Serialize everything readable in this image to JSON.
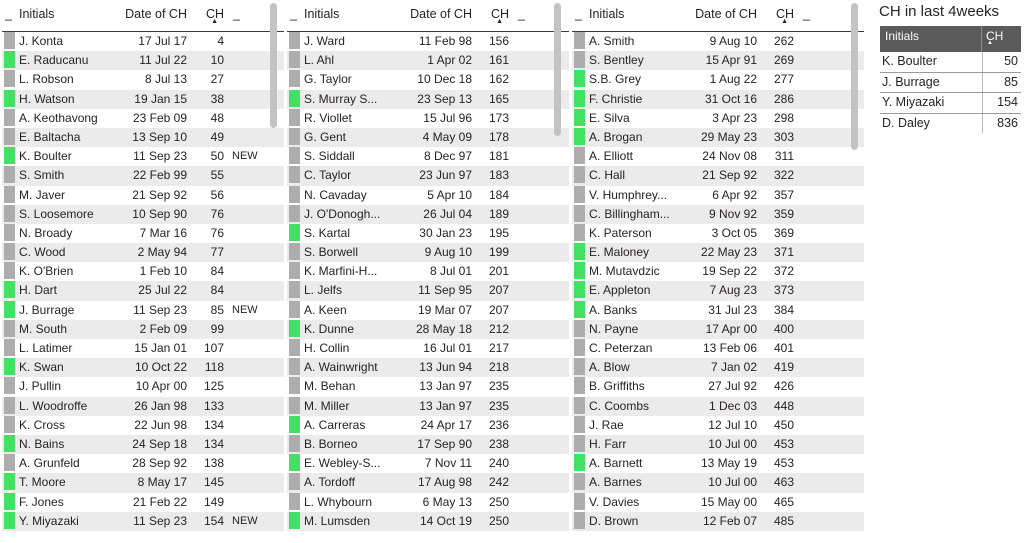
{
  "colors": {
    "flag_green": "#41e263",
    "flag_gray": "#adadad",
    "panel_header_bg": "#5a5a5a"
  },
  "tables": [
    {
      "pad_left": "_",
      "pad_right": "_",
      "columns": [
        "Initials",
        "Date of CH",
        "CH"
      ],
      "sort_icon": "▲",
      "rows": [
        {
          "flag": "gray",
          "initials": "J. Konta",
          "date": "17 Jul 17",
          "ch": "4",
          "tag": ""
        },
        {
          "flag": "green",
          "initials": "E. Raducanu",
          "date": "11 Jul 22",
          "ch": "10",
          "tag": ""
        },
        {
          "flag": "gray",
          "initials": "L. Robson",
          "date": "8 Jul 13",
          "ch": "27",
          "tag": ""
        },
        {
          "flag": "green",
          "initials": "H. Watson",
          "date": "19 Jan 15",
          "ch": "38",
          "tag": ""
        },
        {
          "flag": "gray",
          "initials": "A. Keothavong",
          "date": "23 Feb 09",
          "ch": "48",
          "tag": ""
        },
        {
          "flag": "gray",
          "initials": "E. Baltacha",
          "date": "13 Sep 10",
          "ch": "49",
          "tag": ""
        },
        {
          "flag": "green",
          "initials": "K. Boulter",
          "date": "11 Sep 23",
          "ch": "50",
          "tag": "NEW"
        },
        {
          "flag": "gray",
          "initials": "S. Smith",
          "date": "22 Feb 99",
          "ch": "55",
          "tag": ""
        },
        {
          "flag": "gray",
          "initials": "M. Javer",
          "date": "21 Sep 92",
          "ch": "56",
          "tag": ""
        },
        {
          "flag": "gray",
          "initials": "S. Loosemore",
          "date": "10 Sep 90",
          "ch": "76",
          "tag": ""
        },
        {
          "flag": "gray",
          "initials": "N. Broady",
          "date": "7 Mar 16",
          "ch": "76",
          "tag": ""
        },
        {
          "flag": "gray",
          "initials": "C. Wood",
          "date": "2 May 94",
          "ch": "77",
          "tag": ""
        },
        {
          "flag": "gray",
          "initials": "K. O'Brien",
          "date": "1 Feb 10",
          "ch": "84",
          "tag": ""
        },
        {
          "flag": "green",
          "initials": "H. Dart",
          "date": "25 Jul 22",
          "ch": "84",
          "tag": ""
        },
        {
          "flag": "green",
          "initials": "J. Burrage",
          "date": "11 Sep 23",
          "ch": "85",
          "tag": "NEW"
        },
        {
          "flag": "gray",
          "initials": "M. South",
          "date": "2 Feb 09",
          "ch": "99",
          "tag": ""
        },
        {
          "flag": "gray",
          "initials": "L. Latimer",
          "date": "15 Jan 01",
          "ch": "107",
          "tag": ""
        },
        {
          "flag": "green",
          "initials": "K. Swan",
          "date": "10 Oct 22",
          "ch": "118",
          "tag": ""
        },
        {
          "flag": "gray",
          "initials": "J. Pullin",
          "date": "10 Apr 00",
          "ch": "125",
          "tag": ""
        },
        {
          "flag": "gray",
          "initials": "L. Woodroffe",
          "date": "26 Jan 98",
          "ch": "133",
          "tag": ""
        },
        {
          "flag": "gray",
          "initials": "K. Cross",
          "date": "22 Jun 98",
          "ch": "134",
          "tag": ""
        },
        {
          "flag": "green",
          "initials": "N. Bains",
          "date": "24 Sep 18",
          "ch": "134",
          "tag": ""
        },
        {
          "flag": "gray",
          "initials": "A. Grunfeld",
          "date": "28 Sep 92",
          "ch": "138",
          "tag": ""
        },
        {
          "flag": "green",
          "initials": "T. Moore",
          "date": "8 May 17",
          "ch": "145",
          "tag": ""
        },
        {
          "flag": "green",
          "initials": "F. Jones",
          "date": "21 Feb 22",
          "ch": "149",
          "tag": ""
        },
        {
          "flag": "green",
          "initials": "Y. Miyazaki",
          "date": "11 Sep 23",
          "ch": "154",
          "tag": "NEW"
        }
      ]
    },
    {
      "pad_left": "_",
      "pad_right": "_",
      "columns": [
        "Initials",
        "Date of CH",
        "CH"
      ],
      "sort_icon": "▲",
      "rows": [
        {
          "flag": "gray",
          "initials": "J. Ward",
          "date": "11 Feb 98",
          "ch": "156",
          "tag": ""
        },
        {
          "flag": "gray",
          "initials": "L. Ahl",
          "date": "1 Apr 02",
          "ch": "161",
          "tag": ""
        },
        {
          "flag": "gray",
          "initials": "G. Taylor",
          "date": "10 Dec 18",
          "ch": "162",
          "tag": ""
        },
        {
          "flag": "green",
          "initials": "S. Murray S...",
          "date": "23 Sep 13",
          "ch": "165",
          "tag": ""
        },
        {
          "flag": "gray",
          "initials": "R. Viollet",
          "date": "15 Jul 96",
          "ch": "173",
          "tag": ""
        },
        {
          "flag": "gray",
          "initials": "G. Gent",
          "date": "4 May 09",
          "ch": "178",
          "tag": ""
        },
        {
          "flag": "gray",
          "initials": "S. Siddall",
          "date": "8 Dec 97",
          "ch": "181",
          "tag": ""
        },
        {
          "flag": "gray",
          "initials": "C. Taylor",
          "date": "23 Jun 97",
          "ch": "183",
          "tag": ""
        },
        {
          "flag": "gray",
          "initials": "N. Cavaday",
          "date": "5 Apr 10",
          "ch": "184",
          "tag": ""
        },
        {
          "flag": "gray",
          "initials": "J. O'Donogh...",
          "date": "26 Jul 04",
          "ch": "189",
          "tag": ""
        },
        {
          "flag": "green",
          "initials": "S. Kartal",
          "date": "30 Jan 23",
          "ch": "195",
          "tag": ""
        },
        {
          "flag": "gray",
          "initials": "S. Borwell",
          "date": "9 Aug 10",
          "ch": "199",
          "tag": ""
        },
        {
          "flag": "gray",
          "initials": "K. Marfini-H...",
          "date": "8 Jul 01",
          "ch": "201",
          "tag": ""
        },
        {
          "flag": "gray",
          "initials": "L. Jelfs",
          "date": "11 Sep 95",
          "ch": "207",
          "tag": ""
        },
        {
          "flag": "gray",
          "initials": "A. Keen",
          "date": "19 Mar 07",
          "ch": "207",
          "tag": ""
        },
        {
          "flag": "green",
          "initials": "K. Dunne",
          "date": "28 May 18",
          "ch": "212",
          "tag": ""
        },
        {
          "flag": "gray",
          "initials": "H. Collin",
          "date": "16 Jul 01",
          "ch": "217",
          "tag": ""
        },
        {
          "flag": "gray",
          "initials": "A. Wainwright",
          "date": "13 Jun 94",
          "ch": "218",
          "tag": ""
        },
        {
          "flag": "gray",
          "initials": "M. Behan",
          "date": "13 Jan 97",
          "ch": "235",
          "tag": ""
        },
        {
          "flag": "gray",
          "initials": "M. Miller",
          "date": "13 Jan 97",
          "ch": "235",
          "tag": ""
        },
        {
          "flag": "green",
          "initials": "A. Carreras",
          "date": "24 Apr 17",
          "ch": "236",
          "tag": ""
        },
        {
          "flag": "gray",
          "initials": "B. Borneo",
          "date": "17 Sep 90",
          "ch": "238",
          "tag": ""
        },
        {
          "flag": "green",
          "initials": "E. Webley-S...",
          "date": "7 Nov 11",
          "ch": "240",
          "tag": ""
        },
        {
          "flag": "gray",
          "initials": "A. Tordoff",
          "date": "17 Aug 98",
          "ch": "242",
          "tag": ""
        },
        {
          "flag": "gray",
          "initials": "L. Whybourn",
          "date": "6 May 13",
          "ch": "250",
          "tag": ""
        },
        {
          "flag": "green",
          "initials": "M. Lumsden",
          "date": "14 Oct 19",
          "ch": "250",
          "tag": ""
        }
      ]
    },
    {
      "pad_left": "_",
      "pad_right": "_",
      "columns": [
        "Initials",
        "Date of CH",
        "CH"
      ],
      "sort_icon": "▲",
      "rows": [
        {
          "flag": "gray",
          "initials": "A. Smith",
          "date": "9 Aug 10",
          "ch": "262",
          "tag": ""
        },
        {
          "flag": "gray",
          "initials": "S. Bentley",
          "date": "15 Apr 91",
          "ch": "269",
          "tag": ""
        },
        {
          "flag": "green",
          "initials": "S.B. Grey",
          "date": "1 Aug 22",
          "ch": "277",
          "tag": ""
        },
        {
          "flag": "green",
          "initials": "F. Christie",
          "date": "31 Oct 16",
          "ch": "286",
          "tag": ""
        },
        {
          "flag": "green",
          "initials": "E. Silva",
          "date": "3 Apr 23",
          "ch": "298",
          "tag": ""
        },
        {
          "flag": "green",
          "initials": "A. Brogan",
          "date": "29 May 23",
          "ch": "303",
          "tag": ""
        },
        {
          "flag": "gray",
          "initials": "A. Elliott",
          "date": "24 Nov 08",
          "ch": "311",
          "tag": ""
        },
        {
          "flag": "gray",
          "initials": "C. Hall",
          "date": "21 Sep 92",
          "ch": "322",
          "tag": ""
        },
        {
          "flag": "gray",
          "initials": "V. Humphrey...",
          "date": "6 Apr 92",
          "ch": "357",
          "tag": ""
        },
        {
          "flag": "gray",
          "initials": "C. Billingham...",
          "date": "9 Nov 92",
          "ch": "359",
          "tag": ""
        },
        {
          "flag": "gray",
          "initials": "K. Paterson",
          "date": "3 Oct 05",
          "ch": "369",
          "tag": ""
        },
        {
          "flag": "green",
          "initials": "E. Maloney",
          "date": "22 May 23",
          "ch": "371",
          "tag": ""
        },
        {
          "flag": "green",
          "initials": "M. Mutavdzic",
          "date": "19 Sep 22",
          "ch": "372",
          "tag": ""
        },
        {
          "flag": "green",
          "initials": "E. Appleton",
          "date": "7 Aug 23",
          "ch": "373",
          "tag": ""
        },
        {
          "flag": "green",
          "initials": "A. Banks",
          "date": "31 Jul 23",
          "ch": "384",
          "tag": ""
        },
        {
          "flag": "gray",
          "initials": "N. Payne",
          "date": "17 Apr 00",
          "ch": "400",
          "tag": ""
        },
        {
          "flag": "gray",
          "initials": "C. Peterzan",
          "date": "13 Feb 06",
          "ch": "401",
          "tag": ""
        },
        {
          "flag": "gray",
          "initials": "A. Blow",
          "date": "7 Jan 02",
          "ch": "419",
          "tag": ""
        },
        {
          "flag": "gray",
          "initials": "B. Griffiths",
          "date": "27 Jul 92",
          "ch": "426",
          "tag": ""
        },
        {
          "flag": "gray",
          "initials": "C. Coombs",
          "date": "1 Dec 03",
          "ch": "448",
          "tag": ""
        },
        {
          "flag": "gray",
          "initials": "J. Rae",
          "date": "12 Jul 10",
          "ch": "450",
          "tag": ""
        },
        {
          "flag": "gray",
          "initials": "H. Farr",
          "date": "10 Jul 00",
          "ch": "453",
          "tag": ""
        },
        {
          "flag": "green",
          "initials": "A. Barnett",
          "date": "13 May 19",
          "ch": "453",
          "tag": ""
        },
        {
          "flag": "gray",
          "initials": "A. Barnes",
          "date": "10 Jul 00",
          "ch": "463",
          "tag": ""
        },
        {
          "flag": "gray",
          "initials": "V. Davies",
          "date": "15 May 00",
          "ch": "465",
          "tag": ""
        },
        {
          "flag": "gray",
          "initials": "D. Brown",
          "date": "12 Feb 07",
          "ch": "485",
          "tag": ""
        }
      ]
    }
  ],
  "panel": {
    "title": "CH in last 4weeks",
    "columns": [
      "Initials",
      "CH"
    ],
    "sort_icon": "▲",
    "rows": [
      {
        "initials": "K. Boulter",
        "ch": "50"
      },
      {
        "initials": "J. Burrage",
        "ch": "85"
      },
      {
        "initials": "Y. Miyazaki",
        "ch": "154"
      },
      {
        "initials": "D. Daley",
        "ch": "836"
      }
    ]
  }
}
